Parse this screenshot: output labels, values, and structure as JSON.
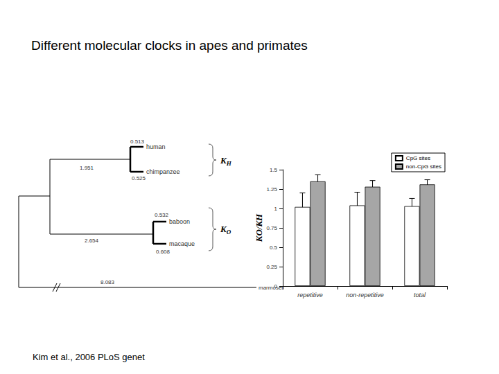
{
  "title": "Different molecular clocks in apes and primates",
  "citation": "Kim et al., 2006 PLoS genet",
  "tree": {
    "ape_clade": {
      "branch": 1.951,
      "label": "KH",
      "taxa": [
        {
          "label": "human",
          "branch": 0.513
        },
        {
          "label": "chimpanzee",
          "branch": 0.525
        }
      ]
    },
    "monkey_clade": {
      "branch": 2.654,
      "label": "KO",
      "taxa": [
        {
          "label": "baboon",
          "branch": 0.532
        },
        {
          "label": "macaque",
          "branch": 0.608
        }
      ]
    },
    "outgroup": {
      "label": "marmoset",
      "branch": 8.083
    }
  },
  "chart_data": {
    "type": "bar",
    "categories": [
      "repetitive",
      "non-repetitive",
      "total"
    ],
    "series": [
      {
        "name": "CpG sites",
        "color": "#ffffff",
        "values": [
          1.02,
          1.04,
          1.03
        ],
        "errors": [
          0.18,
          0.17,
          0.1
        ]
      },
      {
        "name": "non-CpG sites",
        "color": "#a6a6a6",
        "values": [
          1.35,
          1.28,
          1.31
        ],
        "errors": [
          0.085,
          0.08,
          0.06
        ]
      }
    ],
    "ylabel": "KO/KH",
    "ylim": [
      0,
      1.5
    ],
    "yticks": [
      0,
      0.25,
      0.5,
      0.75,
      1,
      1.25,
      1.5
    ],
    "legend": "top-right",
    "grid": false
  }
}
